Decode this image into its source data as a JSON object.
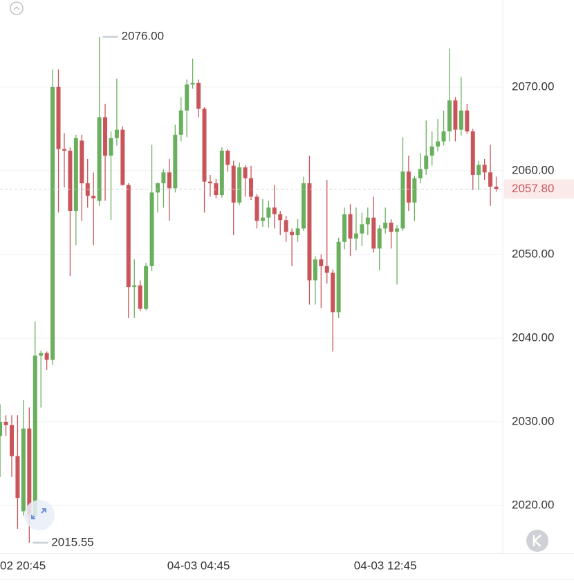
{
  "chart_data": {
    "type": "candlestick",
    "categories": [
      null,
      null,
      "02 20:45",
      null,
      null,
      null,
      null,
      null,
      null,
      null,
      null,
      null,
      null,
      null,
      null,
      null,
      null,
      null,
      null,
      null,
      null,
      null,
      null,
      null,
      null,
      null,
      null,
      null,
      null,
      null,
      null,
      null,
      null,
      null,
      "04-03 04:45",
      null,
      null,
      null,
      null,
      null,
      null,
      null,
      null,
      null,
      null,
      null,
      null,
      null,
      null,
      null,
      null,
      null,
      null,
      null,
      null,
      null,
      null,
      null,
      null,
      null,
      null,
      null,
      null,
      null,
      null,
      null,
      "04-03 12:45",
      null,
      null,
      null,
      null,
      null,
      null,
      null,
      null,
      null,
      null,
      null,
      null,
      null,
      null,
      null,
      null,
      null,
      null,
      null
    ],
    "open": [
      2028.3,
      2030,
      2029.6,
      2025.9,
      2019.3,
      2029.2,
      2018.8,
      2037.9,
      2038.2,
      2037.4,
      2070,
      2062.6,
      2062.4,
      2055.2,
      2063.6,
      2058.5,
      2057,
      2056.4,
      2066.4,
      2061.8,
      2063.9,
      2064.9,
      2058.3,
      2046.1,
      2046.3,
      2043.5,
      2048.6,
      2057.4,
      2058.5,
      2059.8,
      2057.9,
      2064.3,
      2067.2,
      2070.3,
      2070.5,
      2067.4,
      2058.7,
      2058.5,
      2057.1,
      2062.4,
      2060.6,
      2056.2,
      2060.4,
      2059.1,
      2056.9,
      2054,
      2054.4,
      2055.6,
      2054.8,
      2054.1,
      2052.7,
      2052.3,
      2053.1,
      2058.5,
      2046.9,
      2049.4,
      2048.6,
      2047.8,
      2043.1,
      2051.5,
      2054.8,
      2051.9,
      2052.5,
      2053.6,
      2054.4,
      2050.7,
      2053.1,
      2053.8,
      2052.7,
      2053.1,
      2059.9,
      2056.2,
      2059.1,
      2060.2,
      2061.8,
      2062.9,
      2063.5,
      2064.7,
      2068.4,
      2064.9,
      2067.2,
      2064.7,
      2059.5,
      2060.7,
      2059.8,
      2058.1
    ],
    "high": [
      2032.1,
      2030.8,
      2030.8,
      2030.8,
      2032.6,
      2031.7,
      2042,
      2038.5,
      2038.4,
      2072.1,
      2072.1,
      2064.5,
      2062.8,
      2064.3,
      2064.3,
      2061.4,
      2059.8,
      2076,
      2068,
      2064.7,
      2071,
      2065.3,
      2058.5,
      2049.4,
      2046.9,
      2049,
      2063.1,
      2058.6,
      2060.2,
      2061.4,
      2065.5,
      2068.8,
      2070.9,
      2073.4,
      2070.9,
      2067.6,
      2059.5,
      2059,
      2062.8,
      2062.6,
      2061.2,
      2061,
      2060.7,
      2060.6,
      2057.2,
      2056.6,
      2056.4,
      2058.3,
      2055.2,
      2054.6,
      2053.1,
      2054.2,
      2059.3,
      2061.8,
      2049.8,
      2050,
      2058.9,
      2048.2,
      2052,
      2055.6,
      2056,
      2055.6,
      2055,
      2055.6,
      2056.9,
      2053.5,
      2055.6,
      2054.2,
      2053.5,
      2064,
      2061.8,
      2059.4,
      2062.1,
      2066,
      2064.7,
      2066.2,
      2067.2,
      2074.6,
      2068.8,
      2071.2,
      2068,
      2065,
      2061.2,
      2061.4,
      2063.1,
      2059.3
    ],
    "low": [
      2023.4,
      2028.3,
      2023.4,
      2017.2,
      2018.8,
      2015.55,
      2018.5,
      2031.7,
      2036.2,
      2036.8,
      2055,
      2058,
      2047.4,
      2051.1,
      2054,
      2055.6,
      2051.1,
      2055.8,
      2056.4,
      2054.1,
      2063,
      2058.2,
      2042.4,
      2042.4,
      2043.2,
      2043.3,
      2048,
      2055,
      2055.6,
      2054,
      2057.4,
      2063.5,
      2064,
      2069.8,
      2066.4,
      2055,
      2056.9,
      2056.7,
      2056.8,
      2059.9,
      2052.3,
      2055.9,
      2056.9,
      2056.5,
      2053.1,
      2053.3,
      2053.2,
      2053.1,
      2052.3,
      2051.5,
      2048.6,
      2051.5,
      2052.8,
      2044,
      2044,
      2043.6,
      2046.5,
      2038.4,
      2042.4,
      2050.6,
      2049.8,
      2050.5,
      2051,
      2052.3,
      2050.2,
      2048.1,
      2052.5,
      2050.7,
      2046.4,
      2052.8,
      2055.2,
      2054,
      2058.5,
      2059.5,
      2060.6,
      2062.3,
      2063,
      2063.5,
      2063.5,
      2064.2,
      2064.4,
      2057.7,
      2057.7,
      2058.9,
      2055.8,
      2057.5
    ],
    "close": [
      2030,
      2029.6,
      2025.9,
      2020.9,
      2029.2,
      2018.8,
      2037.9,
      2038.2,
      2037.4,
      2070,
      2062.6,
      2062.4,
      2055.2,
      2063.9,
      2058.5,
      2057,
      2056.7,
      2066.4,
      2061.8,
      2063.9,
      2064.9,
      2058.3,
      2046.1,
      2046.3,
      2043.5,
      2048.6,
      2057.4,
      2058.5,
      2059.8,
      2057.9,
      2064.3,
      2067.2,
      2070.3,
      2070.5,
      2067.4,
      2058.7,
      2058.5,
      2057.1,
      2062.4,
      2060.7,
      2056.2,
      2060.4,
      2059.1,
      2056.9,
      2054,
      2054.4,
      2055.6,
      2054.8,
      2054.1,
      2052.7,
      2052.3,
      2053.1,
      2058.5,
      2046.9,
      2049.4,
      2048.6,
      2047.8,
      2043.1,
      2051.5,
      2054.8,
      2051.9,
      2052.5,
      2053.6,
      2054.4,
      2050.7,
      2053.1,
      2053.8,
      2052.7,
      2053.1,
      2059.9,
      2056.2,
      2059.1,
      2060.2,
      2061.8,
      2062.9,
      2063.5,
      2064.7,
      2068.4,
      2064.9,
      2067.2,
      2064.7,
      2059.5,
      2060.7,
      2059.8,
      2058.1,
      2057.8
    ],
    "up_color": "#6aaf5e",
    "down_color": "#c9555a",
    "ylim": [
      2014.3,
      2080.4
    ],
    "yticks": [
      {
        "value": 2020,
        "label": "2020.00"
      },
      {
        "value": 2030,
        "label": "2030.00"
      },
      {
        "value": 2040,
        "label": "2040.00"
      },
      {
        "value": 2050,
        "label": "2050.00"
      },
      {
        "value": 2060,
        "label": "2060.00"
      },
      {
        "value": 2070,
        "label": "2070.00"
      }
    ],
    "grid": true,
    "max_marker": {
      "value": 2076,
      "label": "2076.00"
    },
    "min_marker": {
      "value": 2015.55,
      "label": "2015.55"
    },
    "last_price": {
      "value": 2057.8,
      "label": "2057.80"
    }
  }
}
